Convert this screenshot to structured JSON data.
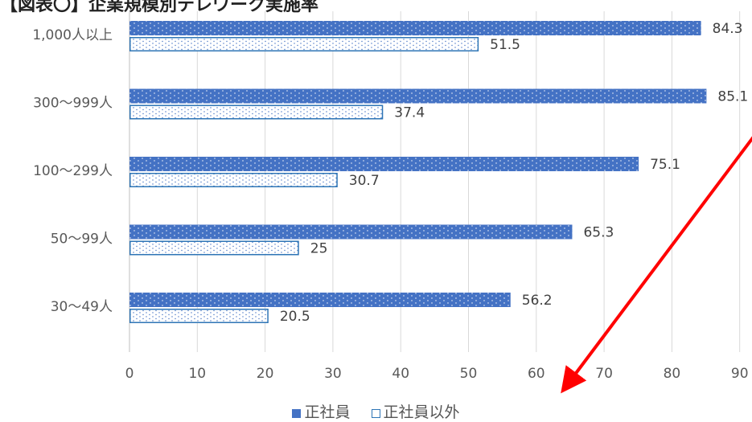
{
  "title": "【図表〇】企業規模別テレワーク実施率",
  "chart_data": {
    "type": "bar",
    "orientation": "horizontal",
    "categories": [
      "1,000人以上",
      "300〜999人",
      "100〜299人",
      "50〜99人",
      "30〜49人"
    ],
    "series": [
      {
        "name": "正社員",
        "values": [
          84.3,
          85.1,
          75.1,
          65.3,
          56.2
        ]
      },
      {
        "name": "正社員以外",
        "values": [
          51.5,
          37.4,
          30.7,
          25,
          20.5
        ]
      }
    ],
    "xticks": [
      "0",
      "10",
      "20",
      "30",
      "40",
      "50",
      "60",
      "70",
      "80",
      "90"
    ],
    "xlim": [
      0,
      90
    ],
    "grid": true,
    "legend": "bottom",
    "colors": {
      "primary": "#4472C4",
      "outline": "#2E75B6",
      "annotation": "#FF0000"
    },
    "annotation": "red-arrow"
  }
}
